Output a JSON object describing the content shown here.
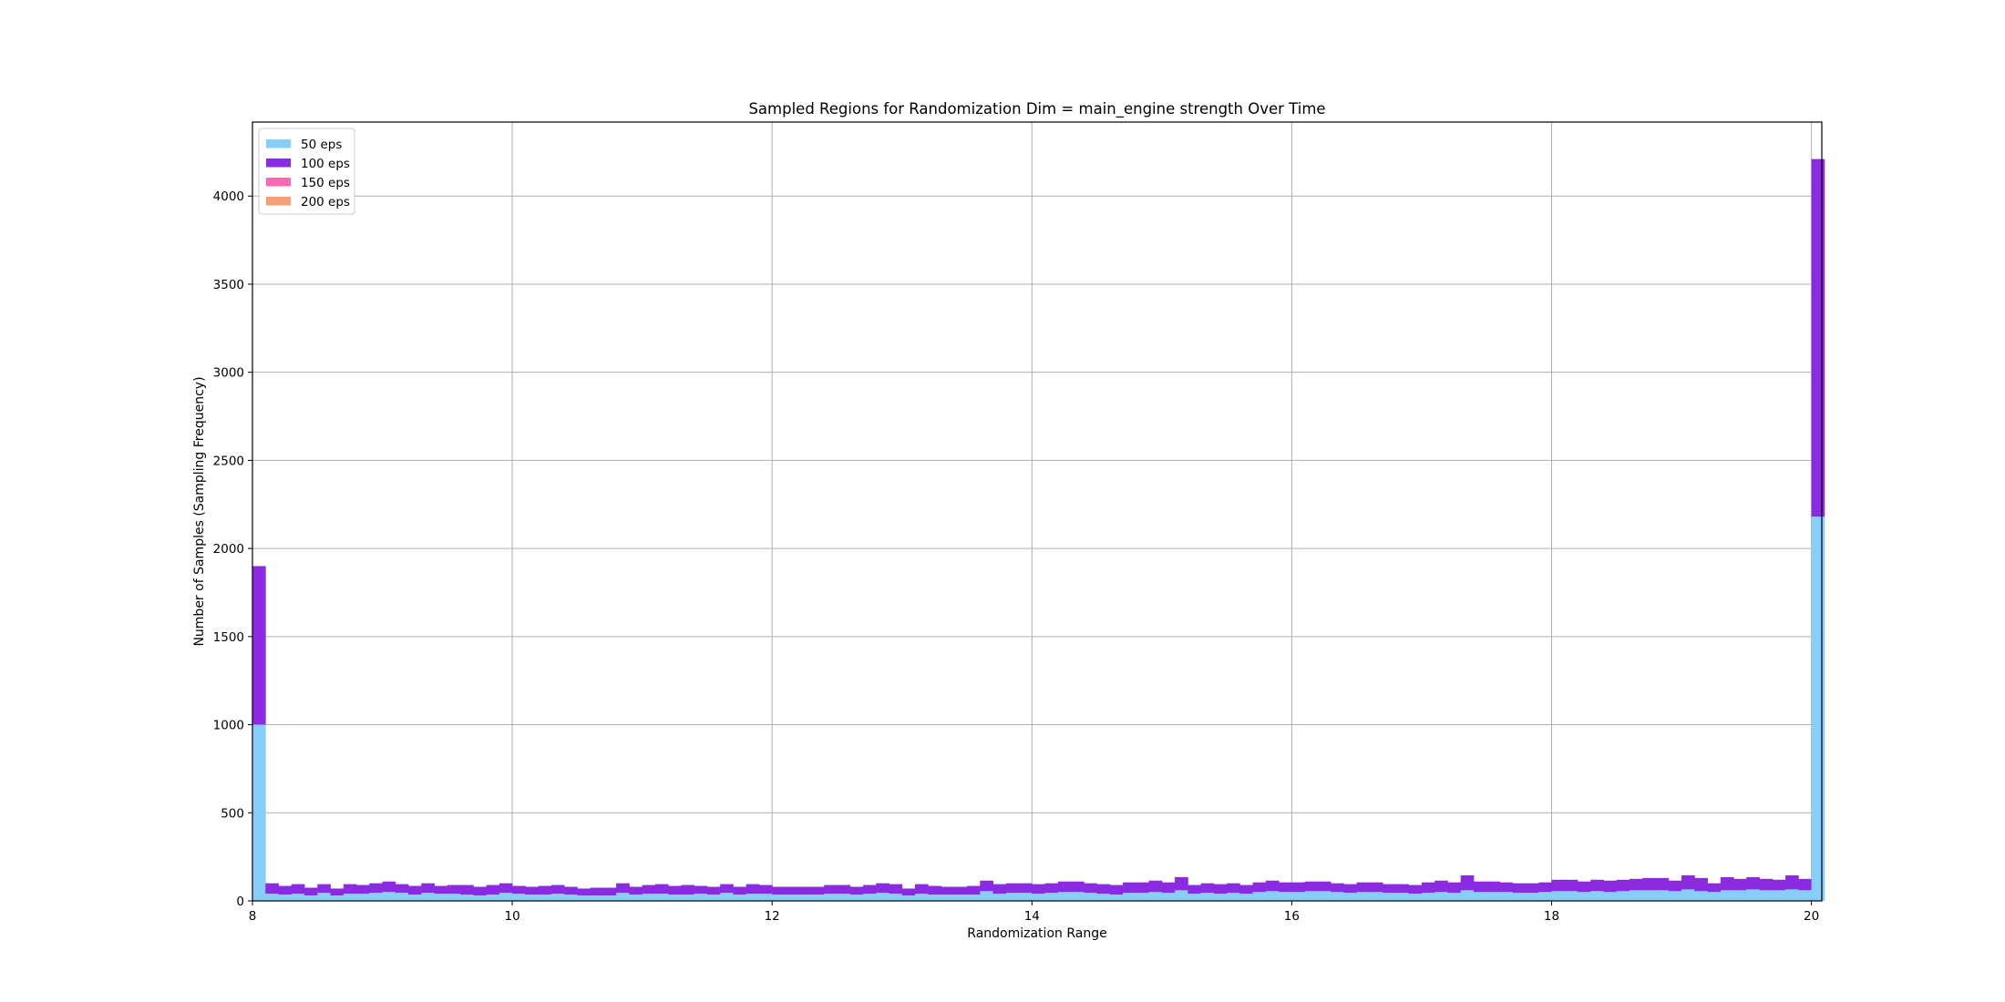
{
  "chart_data": {
    "type": "bar",
    "stacked": true,
    "title": "Sampled Regions for Randomization Dim = main_engine strength Over Time",
    "xlabel": "Randomization Range",
    "ylabel": "Number of Samples (Sampling Frequency)",
    "xlim": [
      8,
      20.08
    ],
    "ylim": [
      0,
      4420
    ],
    "xticks": [
      8,
      10,
      12,
      14,
      16,
      18,
      20
    ],
    "yticks": [
      0,
      500,
      1000,
      1500,
      2000,
      2500,
      3000,
      3500,
      4000
    ],
    "grid": true,
    "legend_position": "top-left",
    "bin_start": 8,
    "bin_width": 0.1,
    "series": [
      {
        "name": "50 eps",
        "color": "#87CEFA",
        "values": [
          1000,
          40,
          35,
          40,
          30,
          45,
          30,
          40,
          40,
          45,
          50,
          45,
          35,
          45,
          40,
          40,
          35,
          30,
          35,
          45,
          40,
          35,
          35,
          40,
          35,
          30,
          30,
          30,
          45,
          35,
          40,
          40,
          35,
          35,
          40,
          35,
          45,
          35,
          40,
          40,
          35,
          35,
          35,
          35,
          40,
          40,
          35,
          40,
          45,
          40,
          30,
          40,
          35,
          35,
          35,
          35,
          55,
          40,
          45,
          45,
          40,
          45,
          50,
          50,
          45,
          40,
          35,
          45,
          45,
          50,
          45,
          60,
          40,
          45,
          40,
          45,
          40,
          50,
          55,
          50,
          50,
          55,
          55,
          50,
          45,
          50,
          50,
          45,
          45,
          40,
          45,
          50,
          45,
          60,
          50,
          50,
          50,
          45,
          45,
          50,
          55,
          55,
          50,
          55,
          50,
          55,
          60,
          60,
          60,
          55,
          65,
          55,
          50,
          60,
          60,
          65,
          60,
          60,
          65,
          60,
          2180
        ],
        "totals": [
          1900,
          100,
          85,
          95,
          75,
          95,
          70,
          95,
          90,
          100,
          110,
          95,
          85,
          100,
          85,
          90,
          90,
          80,
          90,
          100,
          85,
          80,
          85,
          90,
          80,
          70,
          75,
          75,
          100,
          80,
          90,
          95,
          85,
          90,
          85,
          80,
          95,
          80,
          95,
          90,
          80,
          80,
          80,
          80,
          90,
          90,
          80,
          90,
          100,
          95,
          70,
          95,
          85,
          80,
          80,
          85,
          115,
          95,
          100,
          100,
          95,
          100,
          110,
          110,
          100,
          95,
          90,
          105,
          105,
          115,
          105,
          135,
          90,
          100,
          95,
          100,
          90,
          105,
          115,
          105,
          105,
          110,
          110,
          100,
          95,
          105,
          105,
          95,
          95,
          90,
          105,
          115,
          105,
          145,
          110,
          110,
          105,
          100,
          100,
          105,
          120,
          120,
          110,
          120,
          115,
          120,
          125,
          130,
          130,
          115,
          145,
          130,
          100,
          135,
          125,
          135,
          125,
          120,
          145,
          125,
          4210
        ]
      },
      {
        "name": "100 eps",
        "color": "#8A2BE2",
        "values": [
          900,
          60,
          50,
          55,
          45,
          50,
          40,
          55,
          50,
          55,
          60,
          50,
          50,
          55,
          45,
          50,
          55,
          50,
          55,
          55,
          45,
          45,
          50,
          50,
          45,
          40,
          45,
          45,
          55,
          45,
          50,
          55,
          50,
          55,
          45,
          45,
          50,
          45,
          55,
          50,
          45,
          45,
          45,
          45,
          50,
          50,
          45,
          50,
          55,
          55,
          40,
          55,
          50,
          45,
          45,
          50,
          60,
          55,
          55,
          55,
          55,
          55,
          60,
          60,
          55,
          55,
          55,
          60,
          60,
          65,
          60,
          75,
          50,
          55,
          55,
          55,
          50,
          55,
          60,
          55,
          55,
          55,
          55,
          50,
          50,
          55,
          55,
          50,
          50,
          50,
          60,
          65,
          60,
          85,
          60,
          60,
          55,
          55,
          55,
          55,
          65,
          65,
          60,
          65,
          65,
          65,
          65,
          70,
          70,
          60,
          80,
          75,
          50,
          75,
          65,
          70,
          65,
          60,
          80,
          65,
          2030
        ]
      },
      {
        "name": "150 eps",
        "color": "#FF69B4",
        "values": []
      },
      {
        "name": "200 eps",
        "color": "#F4A07A",
        "values": []
      }
    ]
  }
}
